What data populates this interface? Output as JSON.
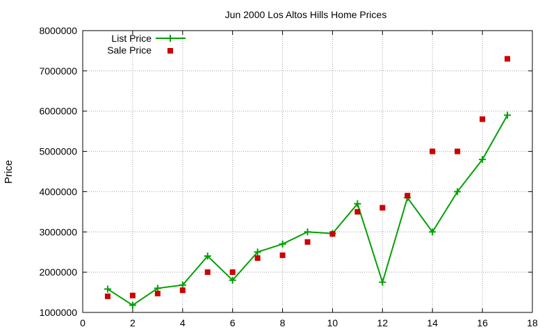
{
  "chart_data": {
    "type": "line",
    "title": "Jun 2000 Los Altos Hills Home Prices",
    "xlabel": "",
    "ylabel": "Price",
    "xlim": [
      0,
      18
    ],
    "ylim": [
      1000000,
      8000000
    ],
    "xticks": [
      0,
      2,
      4,
      6,
      8,
      10,
      12,
      14,
      16,
      18
    ],
    "yticks": [
      1000000,
      2000000,
      3000000,
      4000000,
      5000000,
      6000000,
      7000000,
      8000000
    ],
    "xtick_labels": [
      "0",
      "2",
      "4",
      "6",
      "8",
      "10",
      "12",
      "14",
      "16",
      "18"
    ],
    "ytick_labels": [
      "1000000",
      "2000000",
      "3000000",
      "4000000",
      "5000000",
      "6000000",
      "7000000",
      "8000000"
    ],
    "grid": true,
    "legend_position": "top-left",
    "series": [
      {
        "name": "List Price",
        "style": "linespoints",
        "marker": "plus",
        "color": "#00a000",
        "x": [
          1,
          2,
          3,
          4,
          5,
          6,
          7,
          8,
          9,
          10,
          11,
          12,
          13,
          14,
          15,
          16,
          17
        ],
        "y": [
          1580000,
          1180000,
          1600000,
          1680000,
          2400000,
          1800000,
          2500000,
          2700000,
          3000000,
          2960000,
          3700000,
          1750000,
          3850000,
          3000000,
          4000000,
          4800000,
          5900000
        ]
      },
      {
        "name": "Sale Price",
        "style": "points",
        "marker": "square",
        "color": "#cc0000",
        "x": [
          1,
          2,
          3,
          4,
          5,
          6,
          7,
          8,
          9,
          10,
          11,
          12,
          13,
          14,
          15,
          16,
          17
        ],
        "y": [
          1400000,
          1420000,
          1470000,
          1550000,
          2000000,
          2000000,
          2350000,
          2420000,
          2750000,
          2950000,
          3500000,
          3600000,
          3900000,
          5000000,
          5000000,
          5800000,
          7300000
        ]
      }
    ]
  }
}
